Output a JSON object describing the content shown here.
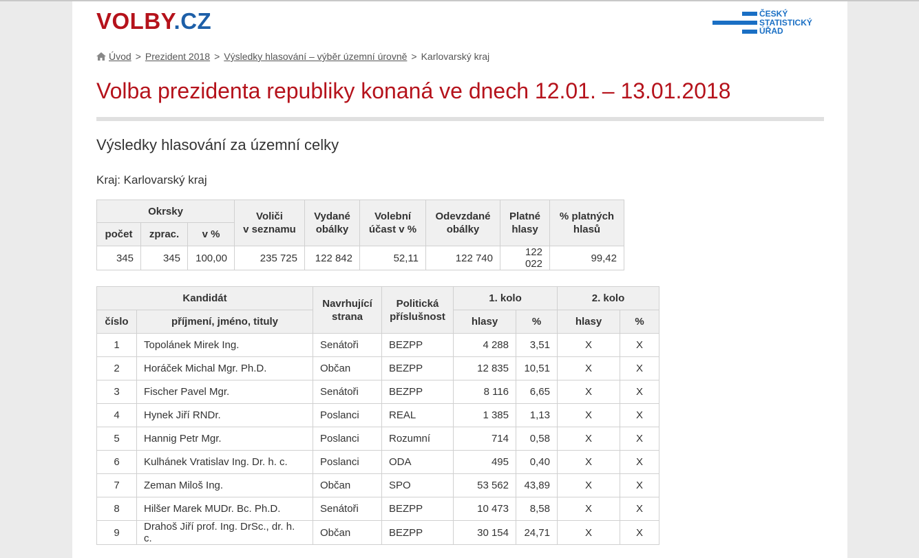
{
  "logo": {
    "part1": "VOLBY",
    "part2": ".CZ"
  },
  "csu_logo": {
    "line1": "ČESKÝ",
    "line2": "STATISTICKÝ",
    "line3": "ÚŘAD"
  },
  "breadcrumb": {
    "items": [
      "Úvod",
      "Prezident 2018",
      "Výsledky hlasování – výběr územní úrovně"
    ],
    "current": "Karlovarský kraj",
    "separator": ">"
  },
  "title": "Volba prezidenta republiky konaná ve dnech 12.01. – 13.01.2018",
  "subtitle": "Výsledky hlasování za územní celky",
  "region": "Kraj: Karlovarský kraj",
  "summary": {
    "headers": {
      "okrsky": "Okrsky",
      "pocet": "počet",
      "zprac": "zprac.",
      "v_pct": "v %",
      "volici_1": "Voliči",
      "volici_2": "v seznamu",
      "vydane_1": "Vydané",
      "vydane_2": "obálky",
      "ucast_1": "Volební",
      "ucast_2": "účast v %",
      "odevzdane_1": "Odevzdané",
      "odevzdane_2": "obálky",
      "platne_1": "Platné",
      "platne_2": "hlasy",
      "pct_platnych_1": "% platných",
      "pct_platnych_2": "hlasů"
    },
    "values": [
      "345",
      "345",
      "100,00",
      "235 725",
      "122 842",
      "52,11",
      "122 740",
      "122 022",
      "99,42"
    ]
  },
  "candidates": {
    "headers": {
      "kandidat": "Kandidát",
      "cislo": "číslo",
      "jmeno": "příjmení, jméno, tituly",
      "navrh_1": "Navrhující",
      "navrh_2": "strana",
      "polit_1": "Politická",
      "polit_2": "příslušnost",
      "kolo1": "1. kolo",
      "kolo2": "2. kolo",
      "hlasy": "hlasy",
      "pct": "%"
    },
    "rows": [
      [
        "1",
        "Topolánek Mirek Ing.",
        "Senátoři",
        "BEZPP",
        "4 288",
        "3,51",
        "X",
        "X"
      ],
      [
        "2",
        "Horáček Michal Mgr. Ph.D.",
        "Občan",
        "BEZPP",
        "12 835",
        "10,51",
        "X",
        "X"
      ],
      [
        "3",
        "Fischer Pavel Mgr.",
        "Senátoři",
        "BEZPP",
        "8 116",
        "6,65",
        "X",
        "X"
      ],
      [
        "4",
        "Hynek Jiří RNDr.",
        "Poslanci",
        "REAL",
        "1 385",
        "1,13",
        "X",
        "X"
      ],
      [
        "5",
        "Hannig Petr Mgr.",
        "Poslanci",
        "Rozumní",
        "714",
        "0,58",
        "X",
        "X"
      ],
      [
        "6",
        "Kulhánek Vratislav Ing. Dr. h. c.",
        "Poslanci",
        "ODA",
        "495",
        "0,40",
        "X",
        "X"
      ],
      [
        "7",
        "Zeman Miloš Ing.",
        "Občan",
        "SPO",
        "53 562",
        "43,89",
        "X",
        "X"
      ],
      [
        "8",
        "Hilšer Marek MUDr. Bc. Ph.D.",
        "Senátoři",
        "BEZPP",
        "10 473",
        "8,58",
        "X",
        "X"
      ],
      [
        "9",
        "Drahoš Jiří prof. Ing. DrSc., dr. h. c.",
        "Občan",
        "BEZPP",
        "30 154",
        "24,71",
        "X",
        "X"
      ]
    ]
  }
}
